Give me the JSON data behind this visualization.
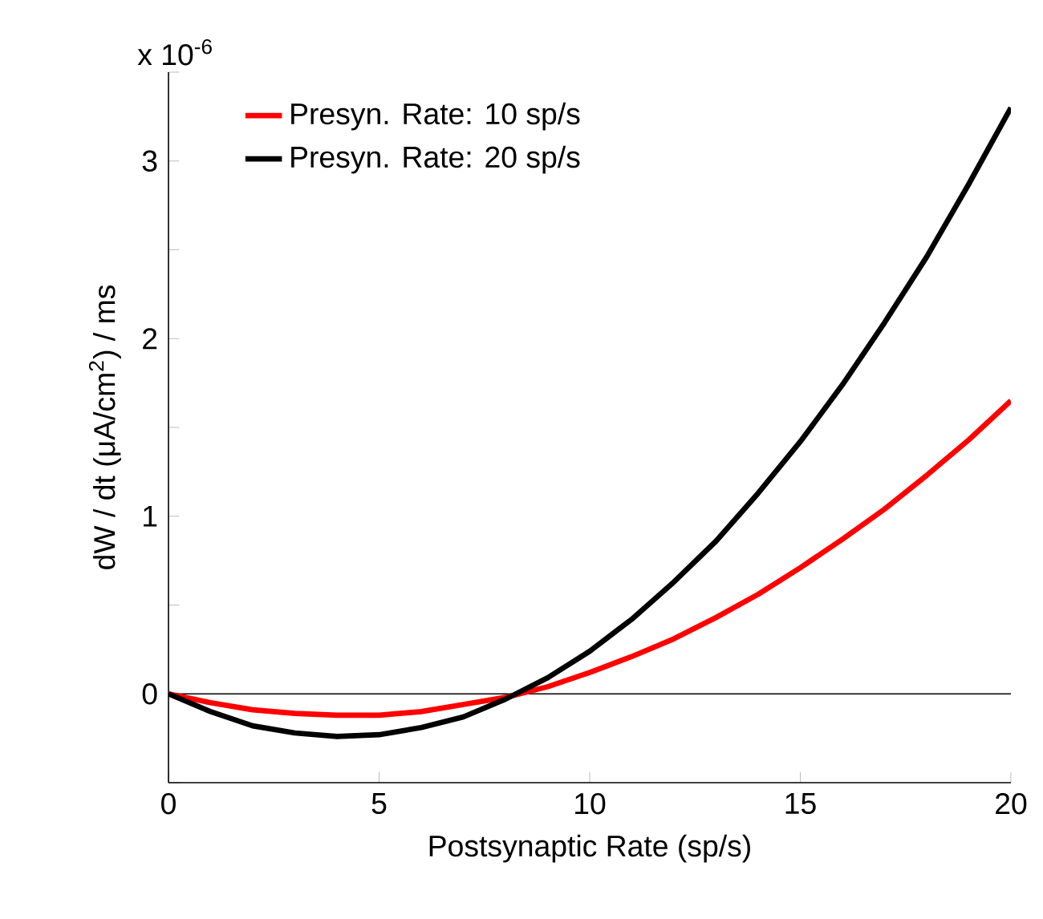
{
  "chart_data": {
    "type": "line",
    "xlabel": "Postsynaptic Rate (sp/s)",
    "ylabel": "dW / dt   (μA/cm$^{2}$) / ms",
    "annotations": [
      "x 10$^{-6}$"
    ],
    "x": [
      0,
      1,
      2,
      3,
      4,
      5,
      6,
      7,
      8,
      9,
      10,
      11,
      12,
      13,
      14,
      15,
      16,
      17,
      18,
      19,
      20
    ],
    "series": [
      {
        "name": "Presyn. Rate: 10 sp/s",
        "color": "#ff0000",
        "values": [
          0,
          -0.05,
          -0.09,
          -0.11,
          -0.12,
          -0.12,
          -0.1,
          -0.06,
          -0.02,
          0.04,
          0.12,
          0.21,
          0.31,
          0.43,
          0.56,
          0.71,
          0.87,
          1.04,
          1.23,
          1.43,
          1.65
        ]
      },
      {
        "name": "Presyn. Rate: 20 sp/s",
        "color": "#000000",
        "values": [
          0,
          -0.1,
          -0.18,
          -0.22,
          -0.24,
          -0.23,
          -0.19,
          -0.13,
          -0.03,
          0.09,
          0.24,
          0.42,
          0.63,
          0.86,
          1.13,
          1.42,
          1.74,
          2.09,
          2.46,
          2.87,
          3.3
        ]
      }
    ],
    "xlim": [
      0,
      20
    ],
    "xticks": [
      0,
      5,
      10,
      15,
      20
    ],
    "ylim": [
      -0.5,
      3.5
    ],
    "yticks": [
      {
        "value": -0.5,
        "label": null
      },
      0,
      {
        "value": 0.5,
        "label": null
      },
      1,
      {
        "value": 1.5,
        "label": null
      },
      2,
      {
        "value": 2.5,
        "label": null
      },
      3,
      {
        "value": 3.5,
        "label": null
      }
    ],
    "ref_lines": [
      {
        "axis": "y",
        "value": 0,
        "color": "#000000"
      }
    ],
    "legend": "top left",
    "grid": false,
    "marker": "none",
    "line_style": "solid"
  }
}
